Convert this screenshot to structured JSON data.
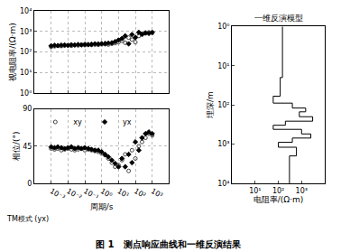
{
  "caption": "图 1   测点响应曲线和一维反演结果",
  "chart_data": [
    {
      "type": "scatter",
      "ylabel": "视电阻率/(Ω·m)",
      "log": true,
      "grid": true,
      "tick_labels": "y",
      "xlim": [
        0.0001,
        10000
      ],
      "xticks": [
        {
          "value": 0.001,
          "label": "10⁻³"
        },
        {
          "value": 0.01,
          "label": "10⁻²"
        },
        {
          "value": 0.1,
          "label": "10⁻¹"
        },
        {
          "value": 1,
          "label": "10⁰"
        },
        {
          "value": 10,
          "label": "10¹"
        },
        {
          "value": 100,
          "label": "10²"
        },
        {
          "value": 1000,
          "label": "10³"
        }
      ],
      "ylim": [
        1,
        10000
      ],
      "yticks": [
        {
          "value": 1,
          "label": "10⁰"
        },
        {
          "value": 10,
          "label": "10¹"
        },
        {
          "value": 100,
          "label": "10²"
        },
        {
          "value": 1000,
          "label": "10³"
        },
        {
          "value": 10000,
          "label": "10⁴"
        }
      ],
      "x": [
        0.001,
        0.0016,
        0.0025,
        0.004,
        0.0063,
        0.01,
        0.016,
        0.025,
        0.04,
        0.063,
        0.1,
        0.16,
        0.25,
        0.4,
        0.63,
        1,
        1.6,
        2.5,
        4,
        6.3,
        10,
        16,
        25,
        40,
        63,
        100,
        160,
        250,
        400,
        630,
        1000
      ],
      "series": [
        {
          "name": "xy",
          "color": "#444444",
          "marker": "circle-open",
          "values": [
            180,
            190,
            200,
            195,
            205,
            210,
            200,
            215,
            210,
            220,
            215,
            225,
            220,
            230,
            225,
            235,
            240,
            230,
            250,
            270,
            300,
            350,
            280,
            500,
            400,
            300,
            600,
            700,
            800,
            900,
            850
          ]
        },
        {
          "name": "yx",
          "color": "#000000",
          "marker": "diamond",
          "values": [
            200,
            210,
            205,
            215,
            220,
            210,
            225,
            220,
            230,
            225,
            235,
            230,
            240,
            250,
            245,
            255,
            260,
            270,
            280,
            320,
            380,
            450,
            600,
            250,
            700,
            500,
            900,
            750,
            850,
            800,
            900
          ]
        }
      ]
    },
    {
      "type": "scatter",
      "xlabel": "周期/s",
      "ylabel": "相位/(°)",
      "annotation": "TM模式 (yx)",
      "log": "x",
      "grid": true,
      "legend": "upper left",
      "xlim": [
        0.0001,
        10000
      ],
      "xticks": [
        {
          "value": 0.001,
          "label": "10⁻³"
        },
        {
          "value": 0.01,
          "label": "10⁻²"
        },
        {
          "value": 0.1,
          "label": "10⁻¹"
        },
        {
          "value": 1,
          "label": "10⁰"
        },
        {
          "value": 10,
          "label": "10¹"
        },
        {
          "value": 100,
          "label": "10²"
        },
        {
          "value": 1000,
          "label": "10³"
        }
      ],
      "ylim": [
        0,
        90
      ],
      "yticks": [
        0,
        45,
        90
      ],
      "x": [
        0.001,
        0.0016,
        0.0025,
        0.004,
        0.0063,
        0.01,
        0.016,
        0.025,
        0.04,
        0.063,
        0.1,
        0.16,
        0.25,
        0.4,
        0.63,
        1,
        1.6,
        2.5,
        4,
        6.3,
        10,
        16,
        25,
        40,
        63,
        100,
        160,
        250,
        400,
        630,
        1000
      ],
      "series": [
        {
          "name": "xy",
          "color": "#444444",
          "marker": "circle-open",
          "values": [
            42,
            41,
            42,
            40,
            41,
            42,
            41,
            40,
            41,
            42,
            40,
            41,
            40,
            39,
            38,
            36,
            34,
            30,
            25,
            20,
            22,
            28,
            35,
            15,
            40,
            30,
            45,
            50,
            55,
            60,
            58
          ]
        },
        {
          "name": "yx",
          "color": "#000000",
          "marker": "diamond",
          "values": [
            44,
            43,
            44,
            43,
            42,
            43,
            44,
            42,
            43,
            42,
            43,
            42,
            41,
            40,
            40,
            38,
            35,
            32,
            28,
            24,
            20,
            30,
            20,
            35,
            25,
            50,
            40,
            55,
            60,
            62,
            60
          ]
        }
      ]
    },
    {
      "type": "step",
      "title": "一维反演模型",
      "xlabel": "电阻率/(Ω·m)",
      "ylabel": "埋深/m",
      "log": true,
      "color": "#000000",
      "xlim": [
        1,
        10000
      ],
      "xticks": [
        {
          "value": 10,
          "label": "10¹"
        },
        {
          "value": 100,
          "label": "10²"
        },
        {
          "value": 1000,
          "label": "10³"
        }
      ],
      "ylim": [
        1,
        10000
      ],
      "yticks": [
        {
          "value": 1,
          "label": "10⁰"
        },
        {
          "value": 10,
          "label": "10¹"
        },
        {
          "value": 100,
          "label": "10²"
        },
        {
          "value": 1000,
          "label": "10³"
        },
        {
          "value": 10000,
          "label": "10⁴"
        }
      ],
      "depths": [
        1,
        20,
        60,
        90,
        120,
        150,
        200,
        260,
        330,
        420,
        550,
        700,
        900,
        1200,
        2000
      ],
      "values": [
        150,
        120,
        60,
        400,
        1500,
        800,
        3000,
        200,
        60,
        1000,
        2500,
        400,
        100,
        600,
        300
      ]
    }
  ]
}
